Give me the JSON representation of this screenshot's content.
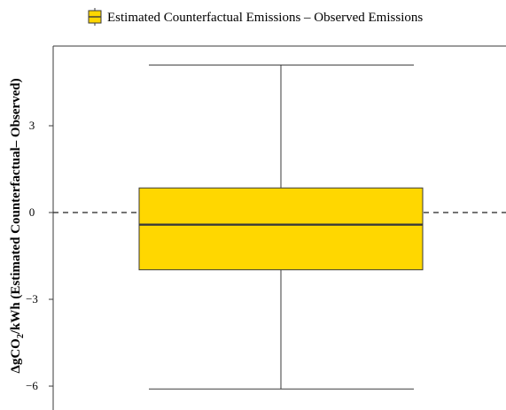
{
  "chart_data": {
    "type": "boxplot",
    "legend": {
      "entries": [
        "Estimated Counterfactual Emissions – Observed Emissions"
      ],
      "placement": "top"
    },
    "ylabel_prefix": "ΔgCO",
    "ylabel_subscript": "2",
    "ylabel_suffix": "/kWh (Estimated Counterfactual– Observed)",
    "yticks": [
      3,
      0,
      -3,
      -6
    ],
    "ytick_labels": [
      "3",
      "0",
      "−3",
      "−6"
    ],
    "ylim": [
      -6.7,
      5.6
    ],
    "reference_line": 0,
    "box": {
      "whisker_high": 5.1,
      "q3": 0.85,
      "median": -0.42,
      "q1": -1.98,
      "whisker_low": -6.1
    },
    "colors": {
      "box_fill": "#FFD700",
      "stroke": "#3a3a3a",
      "reference": "#222222"
    }
  }
}
